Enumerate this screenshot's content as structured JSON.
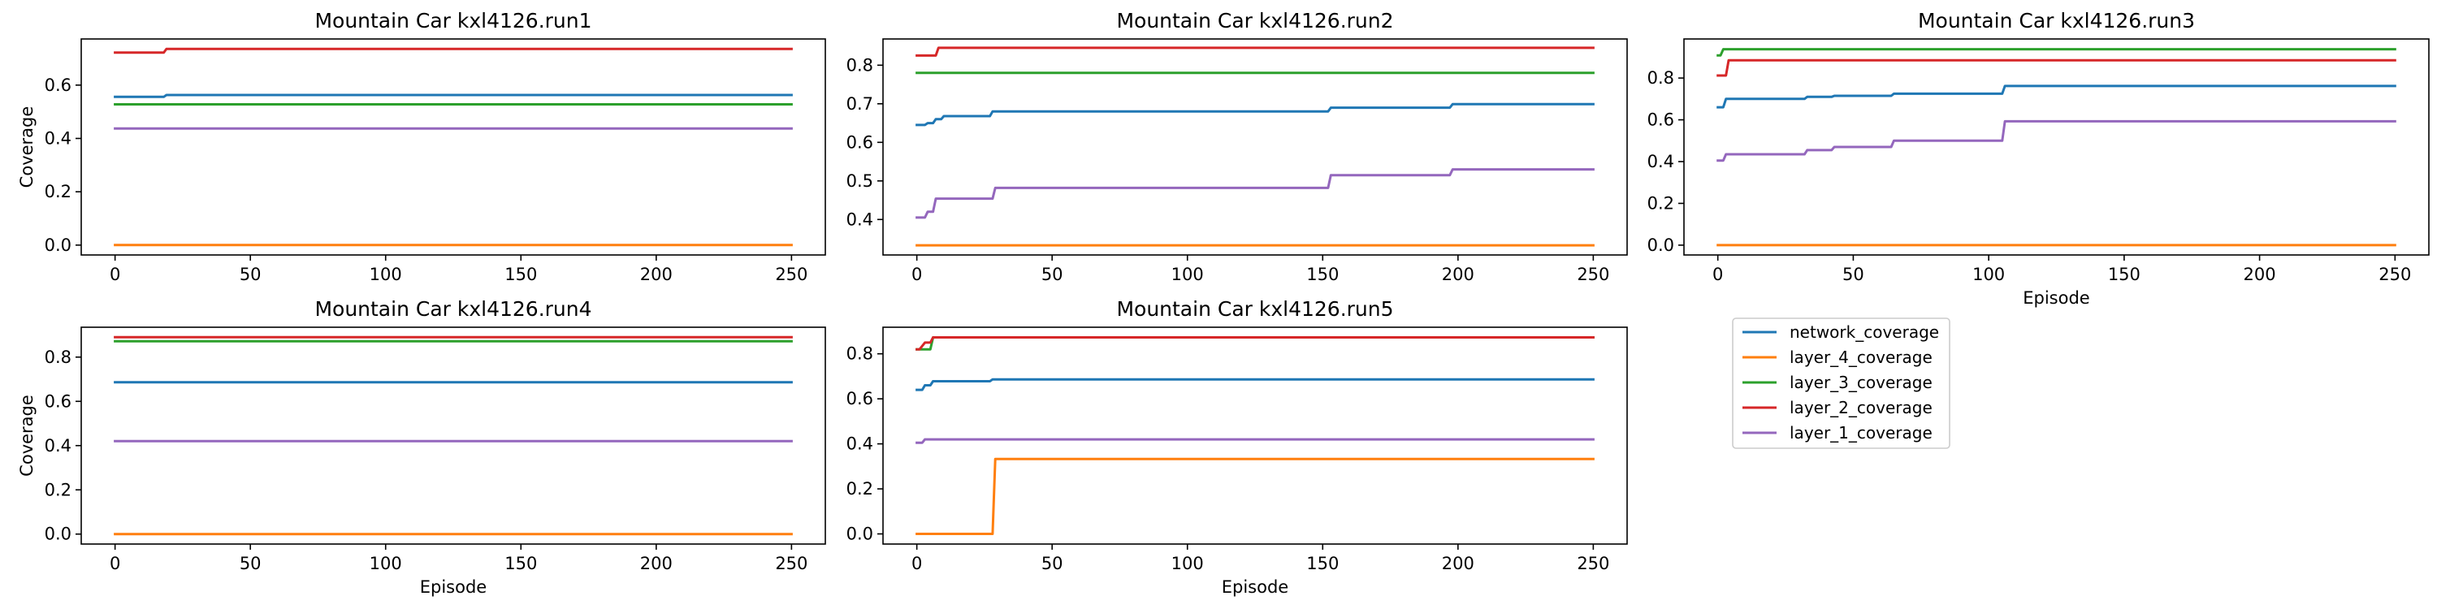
{
  "chart_data": {
    "type": "line",
    "x_label": "Episode",
    "y_label": "Coverage",
    "x_ticks": [
      0,
      50,
      100,
      150,
      200,
      250
    ],
    "xlim": [
      -12.5,
      262.5
    ],
    "grid": false,
    "legend_placement": "empty sixth panel (bottom-right)",
    "series_names": [
      "network_coverage",
      "layer_4_coverage",
      "layer_3_coverage",
      "layer_2_coverage",
      "layer_1_coverage"
    ],
    "colors": {
      "network_coverage": "#1f77b4",
      "layer_4_coverage": "#ff7f0e",
      "layer_3_coverage": "#2ca02c",
      "layer_2_coverage": "#d62728",
      "layer_1_coverage": "#9467bd"
    },
    "panels": [
      {
        "title": "Mountain Car kxl4126.run1",
        "ylim": [
          -0.037,
          0.773
        ],
        "y_ticks": [
          0.0,
          0.2,
          0.4,
          0.6
        ],
        "y_tick_labels": [
          "0.0",
          "0.2",
          "0.4",
          "0.6"
        ],
        "show_ylabel": true,
        "show_xlabel": false,
        "series": [
          {
            "name": "network_coverage",
            "points": [
              [
                0,
                0.556
              ],
              [
                18,
                0.556
              ],
              [
                19,
                0.563
              ],
              [
                250,
                0.563
              ]
            ]
          },
          {
            "name": "layer_4_coverage",
            "points": [
              [
                0,
                0.0
              ],
              [
                250,
                0.0
              ]
            ]
          },
          {
            "name": "layer_3_coverage",
            "points": [
              [
                0,
                0.528
              ],
              [
                250,
                0.528
              ]
            ]
          },
          {
            "name": "layer_2_coverage",
            "points": [
              [
                0,
                0.722
              ],
              [
                18,
                0.722
              ],
              [
                19,
                0.736
              ],
              [
                250,
                0.736
              ]
            ]
          },
          {
            "name": "layer_1_coverage",
            "points": [
              [
                0,
                0.437
              ],
              [
                250,
                0.437
              ]
            ]
          }
        ]
      },
      {
        "title": "Mountain Car kxl4126.run2",
        "ylim": [
          0.308,
          0.868
        ],
        "y_ticks": [
          0.4,
          0.5,
          0.6,
          0.7,
          0.8
        ],
        "y_tick_labels": [
          "0.4",
          "0.5",
          "0.6",
          "0.7",
          "0.8"
        ],
        "show_ylabel": false,
        "show_xlabel": false,
        "series": [
          {
            "name": "network_coverage",
            "points": [
              [
                0,
                0.645
              ],
              [
                3,
                0.645
              ],
              [
                4,
                0.65
              ],
              [
                6,
                0.65
              ],
              [
                7,
                0.66
              ],
              [
                9,
                0.66
              ],
              [
                10,
                0.668
              ],
              [
                27,
                0.668
              ],
              [
                28,
                0.68
              ],
              [
                152,
                0.68
              ],
              [
                153,
                0.69
              ],
              [
                197,
                0.69
              ],
              [
                198,
                0.699
              ],
              [
                250,
                0.699
              ]
            ]
          },
          {
            "name": "layer_4_coverage",
            "points": [
              [
                0,
                0.333
              ],
              [
                250,
                0.333
              ]
            ]
          },
          {
            "name": "layer_3_coverage",
            "points": [
              [
                0,
                0.78
              ],
              [
                250,
                0.78
              ]
            ]
          },
          {
            "name": "layer_2_coverage",
            "points": [
              [
                0,
                0.825
              ],
              [
                7,
                0.825
              ],
              [
                8,
                0.845
              ],
              [
                250,
                0.845
              ]
            ]
          },
          {
            "name": "layer_1_coverage",
            "points": [
              [
                0,
                0.405
              ],
              [
                3,
                0.405
              ],
              [
                4,
                0.42
              ],
              [
                6,
                0.42
              ],
              [
                7,
                0.454
              ],
              [
                28,
                0.454
              ],
              [
                29,
                0.482
              ],
              [
                152,
                0.482
              ],
              [
                153,
                0.515
              ],
              [
                197,
                0.515
              ],
              [
                198,
                0.53
              ],
              [
                250,
                0.53
              ]
            ]
          }
        ]
      },
      {
        "title": "Mountain Car kxl4126.run3",
        "ylim": [
          -0.047,
          0.987
        ],
        "y_ticks": [
          0.0,
          0.2,
          0.4,
          0.6,
          0.8
        ],
        "y_tick_labels": [
          "0.0",
          "0.2",
          "0.4",
          "0.6",
          "0.8"
        ],
        "show_ylabel": false,
        "show_xlabel": true,
        "series": [
          {
            "name": "network_coverage",
            "points": [
              [
                0,
                0.66
              ],
              [
                2,
                0.66
              ],
              [
                3,
                0.7
              ],
              [
                32,
                0.7
              ],
              [
                33,
                0.71
              ],
              [
                42,
                0.71
              ],
              [
                43,
                0.715
              ],
              [
                64,
                0.715
              ],
              [
                65,
                0.725
              ],
              [
                105,
                0.725
              ],
              [
                106,
                0.762
              ],
              [
                250,
                0.762
              ]
            ]
          },
          {
            "name": "layer_4_coverage",
            "points": [
              [
                0,
                0.0
              ],
              [
                250,
                0.0
              ]
            ]
          },
          {
            "name": "layer_3_coverage",
            "points": [
              [
                0,
                0.908
              ],
              [
                1,
                0.908
              ],
              [
                2,
                0.938
              ],
              [
                250,
                0.938
              ]
            ]
          },
          {
            "name": "layer_2_coverage",
            "points": [
              [
                0,
                0.812
              ],
              [
                3,
                0.812
              ],
              [
                4,
                0.885
              ],
              [
                250,
                0.885
              ]
            ]
          },
          {
            "name": "layer_1_coverage",
            "points": [
              [
                0,
                0.405
              ],
              [
                2,
                0.405
              ],
              [
                3,
                0.435
              ],
              [
                32,
                0.435
              ],
              [
                33,
                0.455
              ],
              [
                42,
                0.455
              ],
              [
                43,
                0.47
              ],
              [
                64,
                0.47
              ],
              [
                65,
                0.5
              ],
              [
                105,
                0.5
              ],
              [
                106,
                0.593
              ],
              [
                250,
                0.593
              ]
            ]
          }
        ]
      },
      {
        "title": "Mountain Car kxl4126.run4",
        "ylim": [
          -0.045,
          0.935
        ],
        "y_ticks": [
          0.0,
          0.2,
          0.4,
          0.6,
          0.8
        ],
        "y_tick_labels": [
          "0.0",
          "0.2",
          "0.4",
          "0.6",
          "0.8"
        ],
        "show_ylabel": true,
        "show_xlabel": true,
        "series": [
          {
            "name": "network_coverage",
            "points": [
              [
                0,
                0.686
              ],
              [
                250,
                0.686
              ]
            ]
          },
          {
            "name": "layer_4_coverage",
            "points": [
              [
                0,
                0.0
              ],
              [
                250,
                0.0
              ]
            ]
          },
          {
            "name": "layer_3_coverage",
            "points": [
              [
                0,
                0.872
              ],
              [
                250,
                0.872
              ]
            ]
          },
          {
            "name": "layer_2_coverage",
            "points": [
              [
                0,
                0.89
              ],
              [
                250,
                0.89
              ]
            ]
          },
          {
            "name": "layer_1_coverage",
            "points": [
              [
                0,
                0.42
              ],
              [
                250,
                0.42
              ]
            ]
          }
        ]
      },
      {
        "title": "Mountain Car kxl4126.run5",
        "ylim": [
          -0.045,
          0.918
        ],
        "y_ticks": [
          0.0,
          0.2,
          0.4,
          0.6,
          0.8
        ],
        "y_tick_labels": [
          "0.0",
          "0.2",
          "0.4",
          "0.6",
          "0.8"
        ],
        "show_ylabel": false,
        "show_xlabel": true,
        "series": [
          {
            "name": "network_coverage",
            "points": [
              [
                0,
                0.64
              ],
              [
                2,
                0.64
              ],
              [
                3,
                0.66
              ],
              [
                5,
                0.66
              ],
              [
                6,
                0.678
              ],
              [
                27,
                0.678
              ],
              [
                28,
                0.686
              ],
              [
                250,
                0.686
              ]
            ]
          },
          {
            "name": "layer_4_coverage",
            "points": [
              [
                0,
                0.0
              ],
              [
                28,
                0.0
              ],
              [
                29,
                0.333
              ],
              [
                250,
                0.333
              ]
            ]
          },
          {
            "name": "layer_3_coverage",
            "points": [
              [
                0,
                0.82
              ],
              [
                5,
                0.82
              ],
              [
                6,
                0.873
              ],
              [
                250,
                0.873
              ]
            ]
          },
          {
            "name": "layer_2_coverage",
            "points": [
              [
                0,
                0.82
              ],
              [
                1,
                0.82
              ],
              [
                3,
                0.85
              ],
              [
                5,
                0.85
              ],
              [
                6,
                0.873
              ],
              [
                250,
                0.873
              ]
            ]
          },
          {
            "name": "layer_1_coverage",
            "points": [
              [
                0,
                0.405
              ],
              [
                2,
                0.405
              ],
              [
                3,
                0.42
              ],
              [
                250,
                0.42
              ]
            ]
          }
        ]
      }
    ]
  }
}
